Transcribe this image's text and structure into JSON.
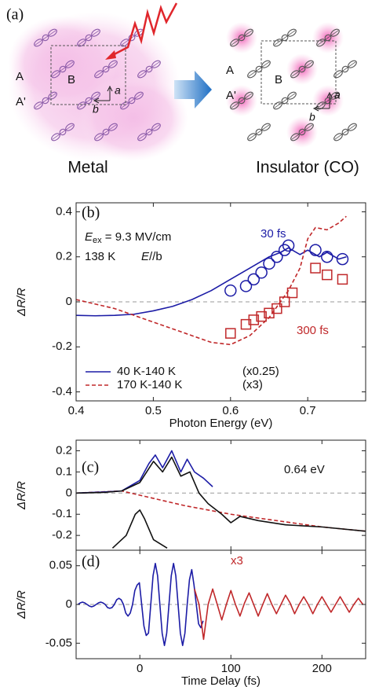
{
  "panel_a": {
    "label": "(a)",
    "metal": {
      "sites": [
        "A",
        "A'",
        "B"
      ],
      "axes": [
        "a",
        "b"
      ],
      "caption": "Metal"
    },
    "insulator": {
      "sites": [
        "A",
        "A'",
        "B"
      ],
      "axes": [
        "a",
        "b"
      ],
      "caption": "Insulator (CO)"
    }
  },
  "chart_data": [
    {
      "type": "line",
      "panel_label": "(b)",
      "annotations": {
        "field": {
          "symbol": "E",
          "subscript": "ex",
          "text": " = 9.3 MV/cm"
        },
        "temperature": "138 K",
        "polarization": {
          "symbol": "E",
          "text": "//b"
        }
      },
      "xlabel": "Photon Energy (eV)",
      "ylabel": "ΔR/R",
      "xlim": [
        0.4,
        0.775
      ],
      "ylim": [
        -0.44,
        0.44
      ],
      "xticks": [
        0.4,
        0.5,
        0.6,
        0.7
      ],
      "yticks": [
        0.4,
        0.2,
        0,
        -0.2,
        -0.4
      ],
      "hline": 0,
      "legend": "lower left",
      "series": [
        {
          "name": "40 K-140 K",
          "scale_label": "(x0.25)",
          "color": "#1c1ca6",
          "style": "solid",
          "in_legend": true,
          "x": [
            0.4,
            0.425,
            0.45,
            0.475,
            0.5,
            0.525,
            0.55,
            0.575,
            0.6,
            0.625,
            0.65,
            0.665,
            0.675,
            0.69,
            0.7,
            0.715,
            0.725,
            0.74,
            0.75
          ],
          "values": [
            -0.06,
            -0.062,
            -0.06,
            -0.055,
            -0.04,
            -0.02,
            0.01,
            0.05,
            0.1,
            0.15,
            0.2,
            0.22,
            0.24,
            0.21,
            0.23,
            0.2,
            0.22,
            0.19,
            0.2
          ]
        },
        {
          "name": "170 K-140 K",
          "scale_label": "(x3)",
          "color": "#c0282a",
          "style": "dashed",
          "in_legend": true,
          "x": [
            0.4,
            0.425,
            0.45,
            0.475,
            0.5,
            0.525,
            0.55,
            0.575,
            0.6,
            0.625,
            0.65,
            0.675,
            0.69,
            0.7,
            0.71,
            0.725,
            0.74,
            0.75
          ],
          "values": [
            0.01,
            -0.01,
            -0.03,
            -0.06,
            -0.09,
            -0.12,
            -0.15,
            -0.18,
            -0.19,
            -0.15,
            -0.07,
            0.05,
            0.15,
            0.28,
            0.33,
            0.32,
            0.35,
            0.38
          ]
        },
        {
          "name": "30 fs",
          "color": "#1c1ca6",
          "style": "markers",
          "marker": "circle",
          "in_legend": false,
          "x": [
            0.6,
            0.62,
            0.63,
            0.64,
            0.65,
            0.66,
            0.67,
            0.675,
            0.71,
            0.725,
            0.745
          ],
          "values": [
            0.05,
            0.07,
            0.1,
            0.13,
            0.17,
            0.2,
            0.23,
            0.25,
            0.23,
            0.2,
            0.19
          ]
        },
        {
          "name": "300 fs",
          "color": "#c0282a",
          "style": "markers",
          "marker": "square",
          "in_legend": false,
          "x": [
            0.6,
            0.62,
            0.63,
            0.64,
            0.65,
            0.66,
            0.67,
            0.68,
            0.71,
            0.725,
            0.745
          ],
          "values": [
            -0.14,
            -0.1,
            -0.08,
            -0.065,
            -0.05,
            -0.03,
            0.0,
            0.04,
            0.15,
            0.12,
            0.1
          ]
        }
      ]
    },
    {
      "type": "line",
      "panel_label": "(c)",
      "annotations": {
        "energy": "0.64 eV"
      },
      "ylabel": "ΔR/R",
      "xlim": [
        -70,
        248
      ],
      "ylim": [
        -0.27,
        0.25
      ],
      "xticks": [
        0,
        100,
        200
      ],
      "xtick_labels": false,
      "yticks": [
        0.2,
        0.1,
        0,
        -0.1,
        -0.2
      ],
      "hline": 0,
      "series": [
        {
          "color": "#c0282a",
          "style": "dashed",
          "x": [
            -70,
            -20,
            0,
            50,
            100,
            150,
            200,
            248
          ],
          "values": [
            0,
            0.01,
            -0.01,
            -0.06,
            -0.1,
            -0.13,
            -0.16,
            -0.18
          ]
        },
        {
          "color": "#1c1ca6",
          "style": "solid",
          "x": [
            -70,
            -40,
            -20,
            0,
            10,
            17,
            25,
            35,
            45,
            52,
            60,
            70,
            80
          ],
          "values": [
            0,
            0.005,
            0.01,
            0.06,
            0.14,
            0.18,
            0.12,
            0.2,
            0.1,
            0.16,
            0.1,
            0.07,
            0.03
          ]
        },
        {
          "color": "#111111",
          "style": "solid",
          "x": [
            -70,
            -40,
            -20,
            0,
            15,
            25,
            35,
            45,
            55,
            65,
            75,
            90,
            100,
            110,
            130,
            160,
            200,
            248
          ],
          "values": [
            0,
            0.003,
            0.01,
            0.05,
            0.15,
            0.1,
            0.17,
            0.08,
            0.1,
            0.0,
            -0.05,
            -0.1,
            -0.14,
            -0.11,
            -0.13,
            -0.15,
            -0.16,
            -0.18
          ]
        },
        {
          "color": "#111111",
          "style": "solid",
          "x": [
            -30,
            -15,
            -5,
            0,
            5,
            15,
            30
          ],
          "values": [
            -0.26,
            -0.2,
            -0.1,
            -0.08,
            -0.12,
            -0.22,
            -0.26
          ]
        }
      ]
    },
    {
      "type": "line",
      "panel_label": "(d)",
      "annotations": {
        "scale": "x3"
      },
      "xlabel": "Time Delay (fs)",
      "ylabel": "ΔR/R",
      "xlim": [
        -70,
        248
      ],
      "ylim": [
        -0.07,
        0.07
      ],
      "xticks": [
        0,
        100,
        200
      ],
      "yticks": [
        0.05,
        0,
        -0.05
      ],
      "hline": 0,
      "series": [
        {
          "color": "#1c1ca6",
          "style": "solid",
          "x": [
            -68,
            -65.5,
            -63,
            -60.5,
            -58,
            -55.5,
            -53,
            -50.5,
            -48,
            -45.5,
            -43,
            -40.5,
            -38,
            -35.5,
            -33,
            -30.5,
            -28,
            -25.5,
            -23,
            -20.5,
            -18,
            -15.5,
            -13,
            -10.5,
            -8,
            -5.5,
            -3,
            -0.5,
            2,
            4.5,
            7,
            9.5,
            12,
            14.5,
            17,
            19.5,
            22,
            24.5,
            27,
            29.5,
            32,
            34.5,
            37,
            39.5,
            42,
            44.5,
            47,
            49.5,
            52,
            54.5,
            57,
            59.5,
            62,
            64.5,
            67,
            69.5
          ],
          "values": [
            0,
            0.002,
            0.003,
            0.002,
            0,
            -0.002,
            -0.003,
            -0.002,
            0,
            0.002,
            0.003,
            0.002,
            0,
            -0.004,
            -0.005,
            -0.004,
            0,
            0.006,
            0.008,
            0.006,
            0,
            -0.011,
            -0.015,
            -0.011,
            0,
            0.018,
            0.025,
            0.028,
            0,
            -0.028,
            -0.04,
            -0.037,
            0,
            0.037,
            0.053,
            0.037,
            0,
            -0.037,
            -0.053,
            -0.037,
            0,
            0.037,
            0.053,
            0.037,
            0,
            -0.037,
            -0.053,
            -0.037,
            0,
            0.032,
            0.045,
            0.025,
            0,
            -0.025,
            -0.03,
            -0.021
          ]
        },
        {
          "color": "#c0282a",
          "style": "solid",
          "x": [
            60,
            65,
            70,
            75,
            80,
            85,
            90,
            95,
            100,
            105,
            110,
            115,
            120,
            125,
            130,
            135,
            140,
            145,
            150,
            155,
            160,
            165,
            170,
            175,
            180,
            185,
            190,
            195,
            200,
            205,
            210,
            215,
            220,
            225,
            230,
            235,
            240,
            245
          ],
          "values": [
            0.02,
            0.0,
            -0.045,
            0.0,
            0.02,
            0.0,
            -0.02,
            0.0,
            0.018,
            0.0,
            -0.015,
            0.002,
            0.015,
            0.0,
            -0.015,
            0.0,
            0.014,
            0.0,
            -0.012,
            0.0,
            0.012,
            0.002,
            -0.012,
            0.0,
            0.01,
            0.0,
            -0.012,
            0.0,
            0.01,
            0.0,
            -0.01,
            0.0,
            0.01,
            0.0,
            -0.01,
            0.0,
            0.008,
            0.0
          ]
        }
      ]
    }
  ]
}
